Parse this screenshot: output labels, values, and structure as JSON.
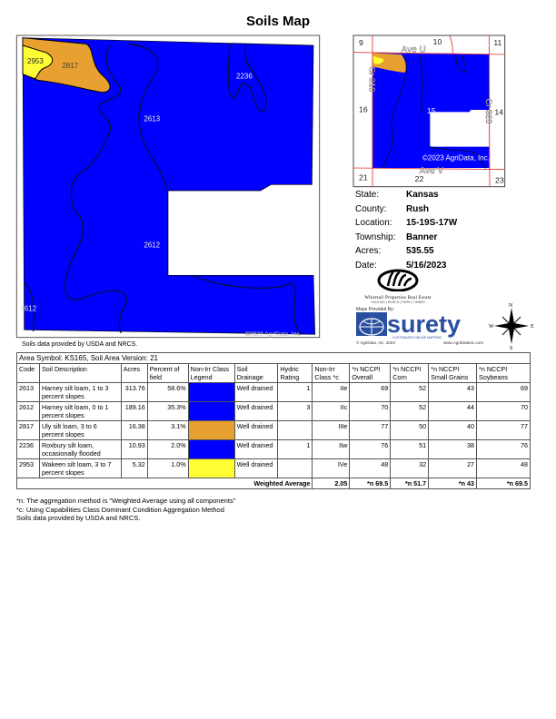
{
  "title": "Soils Map",
  "map": {
    "labels": [
      "2953",
      "2817",
      "2236",
      "2613",
      "2612",
      "2612"
    ],
    "copyright": "©2023 AgriData, Inc.",
    "source": "Soils data provided by USDA and NRCS."
  },
  "locator": {
    "sections": [
      "9",
      "10",
      "11",
      "16",
      "15",
      "14",
      "21",
      "22",
      "23"
    ],
    "roads": [
      "Ave U",
      "Ave V",
      "Cr 310",
      "Cr 320"
    ],
    "copyright": "©2023 AgriData, Inc."
  },
  "info": [
    {
      "label": "State:",
      "value": "Kansas"
    },
    {
      "label": "County:",
      "value": "Rush"
    },
    {
      "label": "Location:",
      "value": "15-19S-17W"
    },
    {
      "label": "Township:",
      "value": "Banner"
    },
    {
      "label": "Acres:",
      "value": "535.55"
    },
    {
      "label": "Date:",
      "value": "5/16/2023"
    }
  ],
  "logos": {
    "whitetail": "Whitetail Properties Real Estate",
    "whitetail_tag": "HUNTING | RANCH | FARM | TIMBER",
    "maps_by": "Maps Provided By:",
    "surety": "surety",
    "surety_tag": "CUSTOMIZED ONLINE MAPPING",
    "agridata": "© AgriData, Inc. 2023",
    "url": "www.AgriDataInc.com",
    "compass": [
      "N",
      "S",
      "W",
      "E"
    ]
  },
  "table": {
    "area": "Area Symbol: KS165, Soil Area Version: 21",
    "headers": [
      "Code",
      "Soil Description",
      "Acres",
      "Percent of field",
      "Non-Irr Class Legend",
      "Soil Drainage",
      "Hydric Rating",
      "Non-Irr Class *c",
      "*n NCCPI Overall",
      "*n NCCPI Corn",
      "*n NCCPI Small Grains",
      "*n NCCPI Soybeans"
    ],
    "rows": [
      {
        "code": "2613",
        "desc": "Harney silt loam, 1 to 3 percent slopes",
        "acres": "313.76",
        "pct": "58.6%",
        "color": "#0000ff",
        "drainage": "Well drained",
        "hydric": "1",
        "cls": "IIe",
        "overall": "69",
        "corn": "52",
        "grains": "43",
        "soy": "69"
      },
      {
        "code": "2612",
        "desc": "Harney silt loam, 0 to 1 percent slopes",
        "acres": "189.16",
        "pct": "35.3%",
        "color": "#0000ff",
        "drainage": "Well drained",
        "hydric": "3",
        "cls": "IIc",
        "overall": "70",
        "corn": "52",
        "grains": "44",
        "soy": "70"
      },
      {
        "code": "2817",
        "desc": "Uly silt loam, 3 to 6 percent slopes",
        "acres": "16.38",
        "pct": "3.1%",
        "color": "#e8a030",
        "drainage": "Well drained",
        "hydric": "",
        "cls": "IIIe",
        "overall": "77",
        "corn": "50",
        "grains": "40",
        "soy": "77"
      },
      {
        "code": "2236",
        "desc": "Roxbury silt loam, occasionally flooded",
        "acres": "10.93",
        "pct": "2.0%",
        "color": "#0000ff",
        "drainage": "Well drained",
        "hydric": "1",
        "cls": "IIw",
        "overall": "76",
        "corn": "51",
        "grains": "38",
        "soy": "76"
      },
      {
        "code": "2953",
        "desc": "Wakeen silt loam, 3 to 7 percent slopes",
        "acres": "5.32",
        "pct": "1.0%",
        "color": "#ffff33",
        "drainage": "Well drained",
        "hydric": "",
        "cls": "IVe",
        "overall": "48",
        "corn": "32",
        "grains": "27",
        "soy": "48"
      }
    ],
    "weighted": {
      "label": "Weighted Average",
      "cls": "2.05",
      "overall": "*n 69.5",
      "corn": "*n 51.7",
      "grains": "*n 43",
      "soy": "*n 69.5"
    }
  },
  "footnotes": [
    "*n: The aggregation method is \"Weighted Average using all components\"",
    "*c: Using Capabilities Class Dominant Condition Aggregation Method",
    "Soils data provided by USDA and NRCS."
  ]
}
